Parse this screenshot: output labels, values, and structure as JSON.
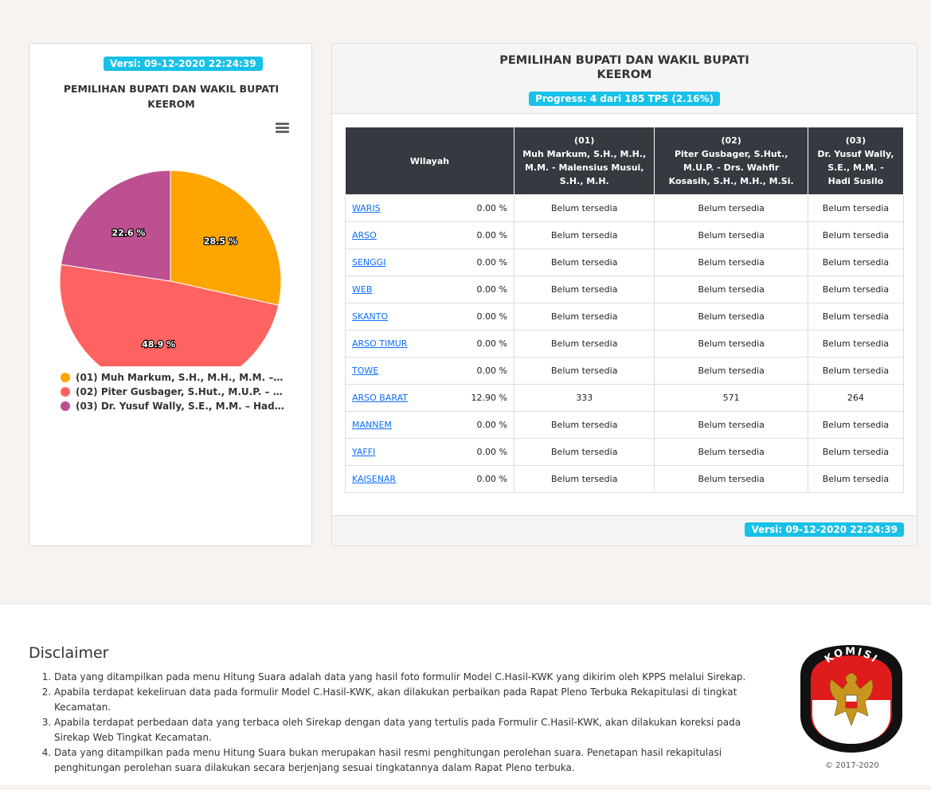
{
  "left_panel": {
    "version_badge": "Versi: 09-12-2020 22:24:39",
    "title_line1": "PEMILIHAN BUPATI DAN WAKIL BUPATI",
    "title_line2": "KEEROM"
  },
  "chart_data": {
    "type": "pie",
    "slices": [
      {
        "label": "(01) Muh Markum, S.H., M.H., M.M. – Malensius Musui, S.H., M.H.",
        "legend": "(01) Muh Markum, S.H., M.H., M.M. – Mal...",
        "value": 28.5,
        "display": "28.5 %",
        "color": "#ffa500"
      },
      {
        "label": "(02) Piter Gusbager, S.Hut., M.U.P. – Drs. Wahfir Kosasih, S.H., M.H., M.Si.",
        "legend": "(02) Piter Gusbager, S.Hut., M.U.P. – Drs....",
        "value": 48.9,
        "display": "48.9 %",
        "color": "#ff6361"
      },
      {
        "label": "(03) Dr. Yusuf Wally, S.E., M.M. – Hadi Susilo",
        "legend": "(03) Dr. Yusuf Wally, S.E., M.M. – Hadi Su...",
        "value": 22.6,
        "display": "22.6 %",
        "color": "#bc5090"
      }
    ],
    "legend_position": "bottom"
  },
  "right_panel": {
    "title_line1": "PEMILIHAN BUPATI DAN WAKIL BUPATI",
    "title_line2": "KEEROM",
    "progress_badge": "Progress: 4 dari 185 TPS (2.16%)",
    "version_badge": "Versi: 09-12-2020 22:24:39",
    "table": {
      "headers": {
        "wilayah": "Wilayah",
        "c1_no": "(01)",
        "c1_name": "Muh Markum, S.H., M.H., M.M. - Malensius Musui, S.H., M.H.",
        "c2_no": "(02)",
        "c2_name": "Piter Gusbager, S.Hut., M.U.P. - Drs. Wahfir Kosasih, S.H., M.H., M.Si.",
        "c3_no": "(03)",
        "c3_name": "Dr. Yusuf Wally, S.E., M.M. - Hadi Susilo"
      },
      "rows": [
        {
          "name": "WARIS",
          "pct": "0.00 %",
          "c1": "Belum tersedia",
          "c2": "Belum tersedia",
          "c3": "Belum tersedia"
        },
        {
          "name": "ARSO",
          "pct": "0.00 %",
          "c1": "Belum tersedia",
          "c2": "Belum tersedia",
          "c3": "Belum tersedia"
        },
        {
          "name": "SENGGI",
          "pct": "0.00 %",
          "c1": "Belum tersedia",
          "c2": "Belum tersedia",
          "c3": "Belum tersedia"
        },
        {
          "name": "WEB",
          "pct": "0.00 %",
          "c1": "Belum tersedia",
          "c2": "Belum tersedia",
          "c3": "Belum tersedia"
        },
        {
          "name": "SKANTO",
          "pct": "0.00 %",
          "c1": "Belum tersedia",
          "c2": "Belum tersedia",
          "c3": "Belum tersedia"
        },
        {
          "name": "ARSO TIMUR",
          "pct": "0.00 %",
          "c1": "Belum tersedia",
          "c2": "Belum tersedia",
          "c3": "Belum tersedia"
        },
        {
          "name": "TOWE",
          "pct": "0.00 %",
          "c1": "Belum tersedia",
          "c2": "Belum tersedia",
          "c3": "Belum tersedia"
        },
        {
          "name": "ARSO BARAT",
          "pct": "12.90 %",
          "c1": "333",
          "c2": "571",
          "c3": "264"
        },
        {
          "name": "MANNEM",
          "pct": "0.00 %",
          "c1": "Belum tersedia",
          "c2": "Belum tersedia",
          "c3": "Belum tersedia"
        },
        {
          "name": "YAFFI",
          "pct": "0.00 %",
          "c1": "Belum tersedia",
          "c2": "Belum tersedia",
          "c3": "Belum tersedia"
        },
        {
          "name": "KAISENAR",
          "pct": "0.00 %",
          "c1": "Belum tersedia",
          "c2": "Belum tersedia",
          "c3": "Belum tersedia"
        }
      ]
    }
  },
  "footer": {
    "disclaimer_title": "Disclaimer",
    "items": [
      "Data yang ditampilkan pada menu Hitung Suara adalah data yang hasil foto formulir Model C.Hasil-KWK yang dikirim oleh KPPS melalui Sirekap.",
      "Apabila terdapat kekeliruan data pada formulir Model C.Hasil-KWK, akan dilakukan perbaikan pada Rapat Pleno Terbuka Rekapitulasi di tingkat Kecamatan.",
      "Apabila terdapat perbedaan data yang terbaca oleh Sirekap dengan data yang tertulis pada Formulir C.Hasil-KWK, akan dilakukan koreksi pada Sirekap Web Tingkat Kecamatan.",
      "Data yang ditampilkan pada menu Hitung Suara bukan merupakan hasil resmi penghitungan perolehan suara. Penetapan hasil rekapitulasi penghitungan perolehan suara dilakukan secara berjenjang sesuai tingkatannya dalam Rapat Pleno terbuka."
    ],
    "logo_top": "KOMISI",
    "logo_bottom": "PEMILIHAN UMUM",
    "copyright": "© 2017-2020"
  }
}
